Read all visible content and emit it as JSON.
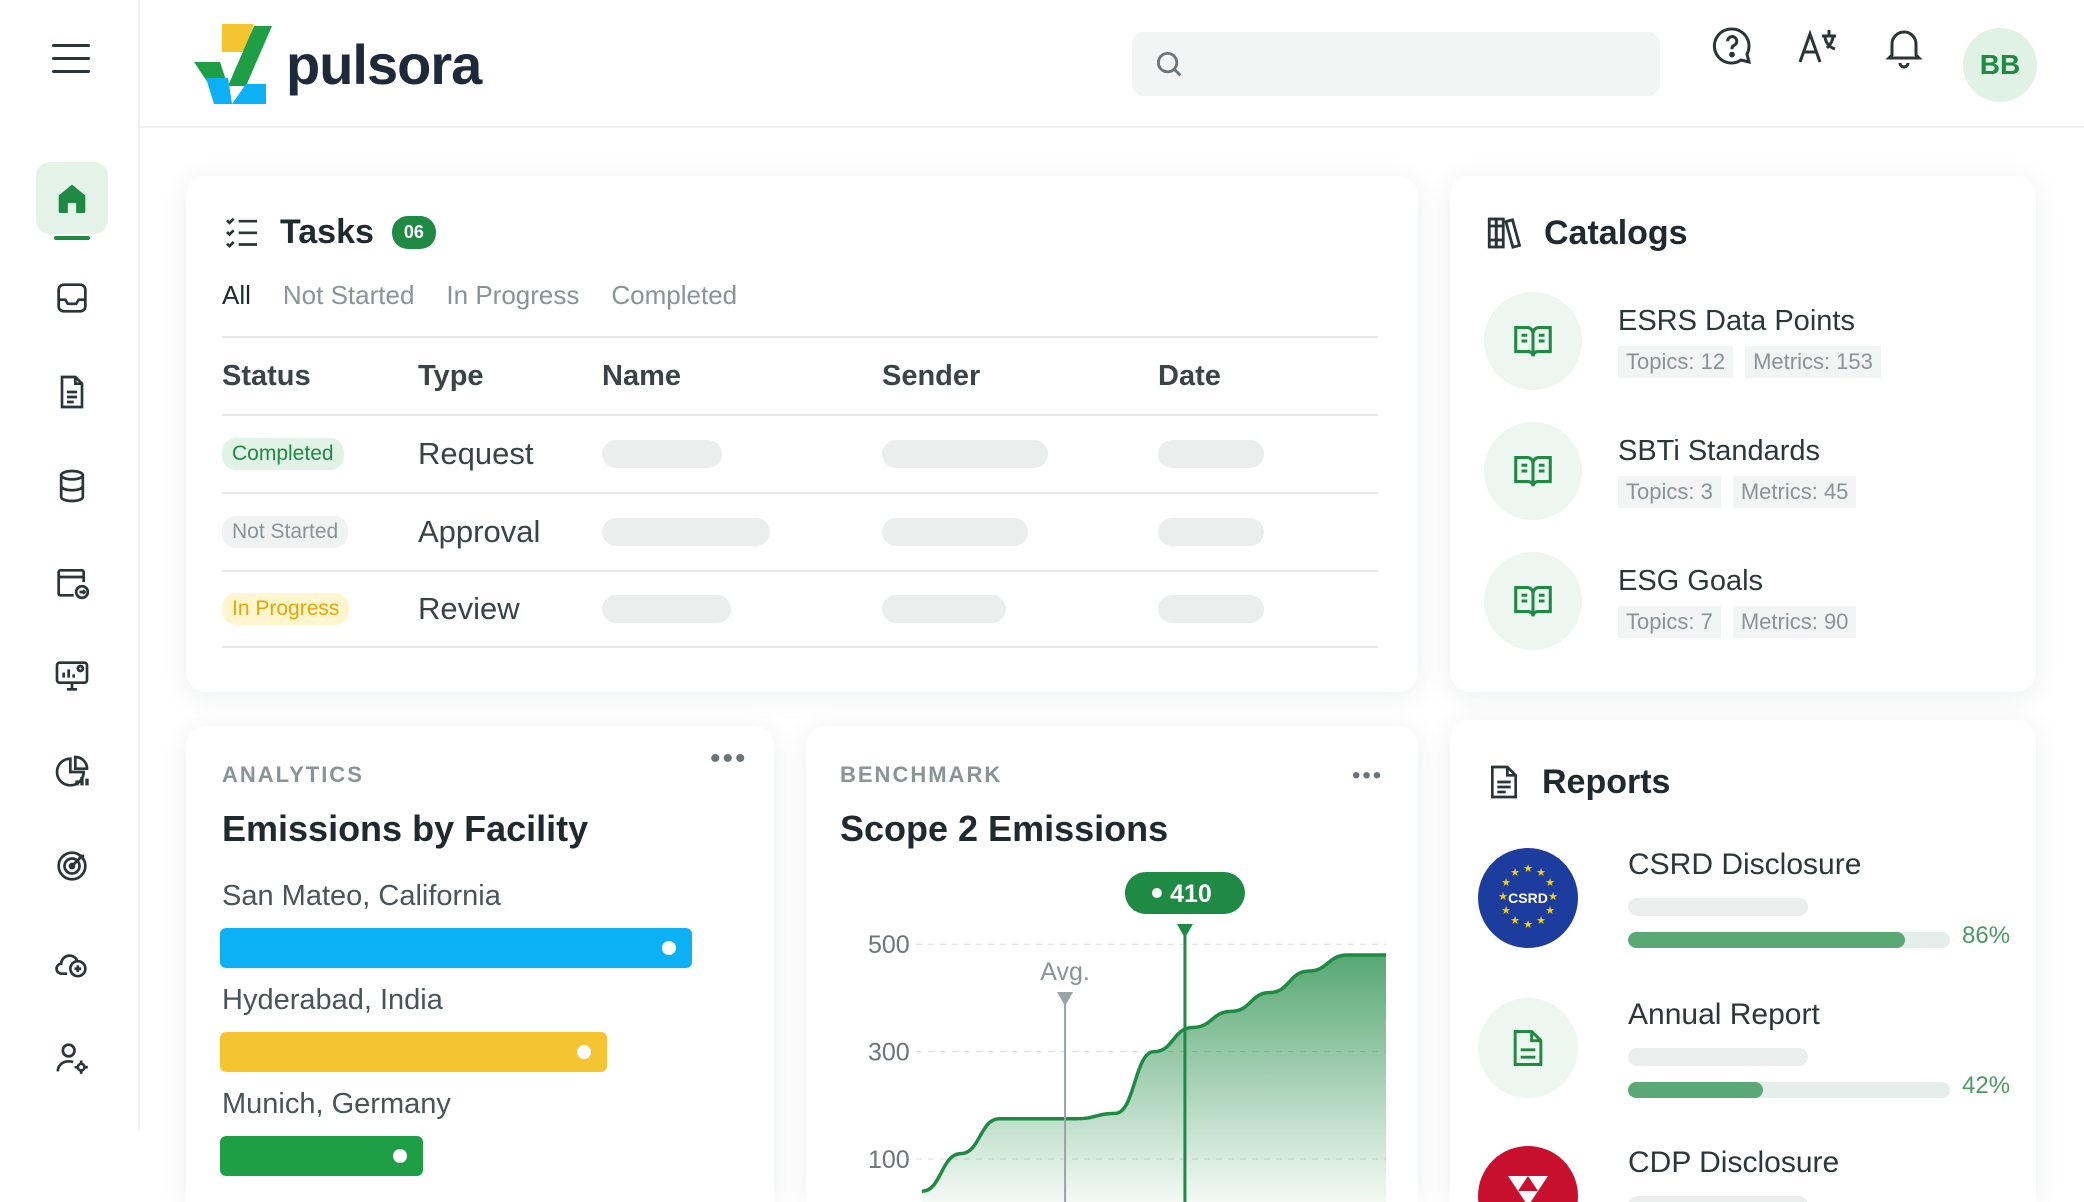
{
  "app": {
    "brand": "pulsora"
  },
  "header": {
    "search": {
      "placeholder": "",
      "value": ""
    },
    "icons": [
      "help-icon",
      "translate-icon",
      "bell-icon"
    ],
    "avatar_initials": "BB"
  },
  "sidebar": {
    "items": [
      {
        "name": "home",
        "active": true
      },
      {
        "name": "inbox",
        "active": false
      },
      {
        "name": "document",
        "active": false
      },
      {
        "name": "database",
        "active": false
      },
      {
        "name": "calendar-share",
        "active": false
      },
      {
        "name": "monitor-chart",
        "active": false
      },
      {
        "name": "analytics-pie",
        "active": false
      },
      {
        "name": "target",
        "active": false
      },
      {
        "name": "cloud-add",
        "active": false
      },
      {
        "name": "user-settings",
        "active": false
      }
    ]
  },
  "tasks": {
    "title": "Tasks",
    "count": "06",
    "tabs": [
      {
        "label": "All",
        "active": true
      },
      {
        "label": "Not Started",
        "active": false
      },
      {
        "label": "In Progress",
        "active": false
      },
      {
        "label": "Completed",
        "active": false
      }
    ],
    "columns": [
      "Status",
      "Type",
      "Name",
      "Sender",
      "Date"
    ],
    "rows": [
      {
        "status": "Completed",
        "status_kind": "done",
        "type": "Request",
        "name_fill": 0.43,
        "sender_fill": 0.6,
        "date_fill": 0.48
      },
      {
        "status": "Not Started",
        "status_kind": "not",
        "type": "Approval",
        "name_fill": 0.6,
        "sender_fill": 0.53,
        "date_fill": 0.48
      },
      {
        "status": "In Progress",
        "status_kind": "prog",
        "type": "Review",
        "name_fill": 0.46,
        "sender_fill": 0.45,
        "date_fill": 0.48
      }
    ]
  },
  "catalogs": {
    "title": "Catalogs",
    "items": [
      {
        "name": "ESRS Data Points",
        "topics": "Topics: 12",
        "metrics": "Metrics: 153"
      },
      {
        "name": "SBTi Standards",
        "topics": "Topics: 3",
        "metrics": "Metrics: 45"
      },
      {
        "name": "ESG Goals",
        "topics": "Topics: 7",
        "metrics": "Metrics: 90"
      }
    ]
  },
  "analytics": {
    "eyebrow": "ANALYTICS",
    "title": "Emissions by Facility",
    "facilities": [
      {
        "label": "San Mateo, California",
        "color": "#0bb0f5",
        "level": 1.0
      },
      {
        "label": "Hyderabad, India",
        "color": "#f5c431",
        "level": 0.82
      },
      {
        "label": "Munich, Germany",
        "color": "#1e9e45",
        "level": 0.43
      }
    ]
  },
  "benchmark": {
    "eyebrow": "BENCHMARK",
    "title": "Scope 2 Emissions",
    "avg_label": "Avg.",
    "marker_label": "410"
  },
  "chart_data": {
    "type": "area",
    "title": "Scope 2 Emissions",
    "ylabel": "",
    "xlabel": "",
    "yticks": [
      500,
      300,
      100
    ],
    "ylim": [
      20,
      560
    ],
    "x": [
      0,
      1,
      2,
      3,
      4,
      5,
      6,
      7,
      8,
      9,
      10,
      11,
      12
    ],
    "values": [
      40,
      110,
      175,
      175,
      175,
      185,
      300,
      345,
      375,
      410,
      450,
      480,
      480
    ],
    "avg_x": 3.7,
    "highlight": {
      "x": 6.8,
      "y": 410
    },
    "grid": true,
    "color": "#1e8a43"
  },
  "reports": {
    "title": "Reports",
    "items": [
      {
        "name": "CSRD Disclosure",
        "badge": "CSRD",
        "percent": "86%",
        "progress": 0.86
      },
      {
        "name": "Annual Report",
        "percent": "42%",
        "progress": 0.42
      },
      {
        "name": "CDP Disclosure"
      }
    ]
  },
  "colors": {
    "accent": "#1e8a43",
    "accent_light": "#e4f3e8"
  }
}
